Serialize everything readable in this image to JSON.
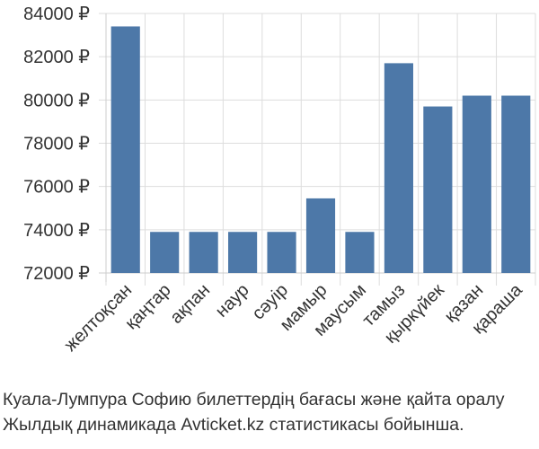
{
  "chart_data": {
    "type": "bar",
    "categories": [
      "желтоқсан",
      "қаңтар",
      "ақпан",
      "наур",
      "сәуір",
      "мамыр",
      "маусым",
      "тамыз",
      "қыркүйек",
      "қазан",
      "қараша"
    ],
    "values": [
      83400,
      73900,
      73900,
      73900,
      73900,
      75450,
      73900,
      81700,
      79700,
      80200,
      80200
    ],
    "ylim": [
      72000,
      84000
    ],
    "yticks": [
      72000,
      74000,
      76000,
      78000,
      80000,
      82000,
      84000
    ],
    "ytick_labels": [
      "72000 ₽",
      "74000 ₽",
      "76000 ₽",
      "78000 ₽",
      "80000 ₽",
      "82000 ₽",
      "84000 ₽"
    ],
    "bar_color": "#4d78a8",
    "grid": true
  },
  "caption": {
    "line1": "Куала-Лумпура Софию билеттердің бағасы және қайта оралу",
    "line2": "Жылдық динамикада Avticket.kz статистикасы бойынша."
  }
}
